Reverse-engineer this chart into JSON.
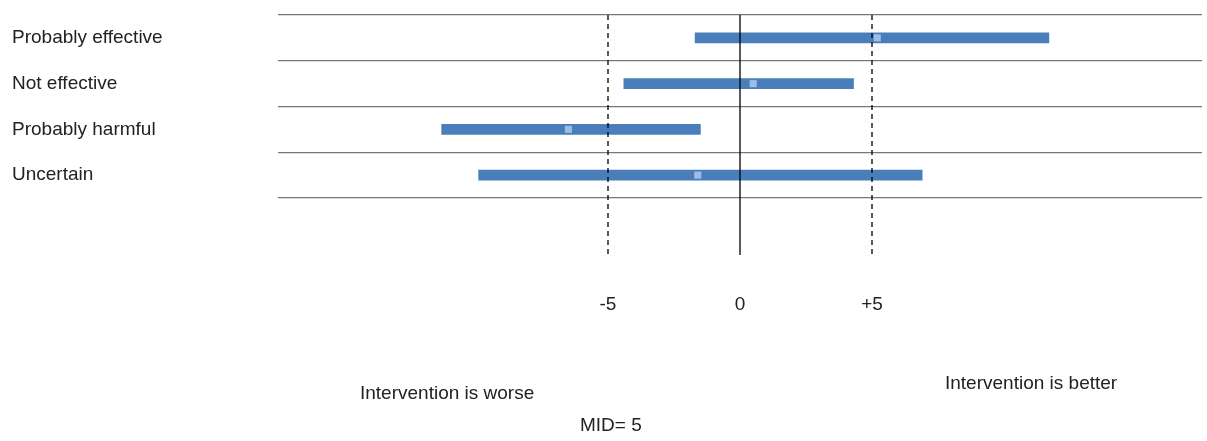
{
  "chart_data": {
    "type": "bar",
    "orientation": "horizontal",
    "categories": [
      "Probably effective",
      "Not effective",
      "Probably harmful",
      "Uncertain"
    ],
    "marker": "square",
    "series": [
      {
        "color": "#4a7ebb",
        "base": [
          -1.7,
          -4.4,
          -11.3,
          -9.9
        ],
        "values": [
          13.4,
          8.7,
          9.8,
          16.8
        ]
      },
      {
        "type": "scatter",
        "color": "#9dbde6",
        "values": [
          5.2,
          0.5,
          -6.5,
          -1.6
        ]
      }
    ],
    "xlim": [
      -17.5,
      17.5
    ],
    "xticks": [
      -5,
      0,
      {
        "value": 5,
        "label": "+5"
      }
    ],
    "grid": "y",
    "legend": false,
    "ref_lines": [
      {
        "axis": "x",
        "value": -5,
        "line_style": "dashed",
        "color": "#000000"
      },
      {
        "axis": "x",
        "value": 0,
        "line_style": "solid",
        "color": "#000000"
      },
      {
        "axis": "x",
        "value": 5,
        "line_style": "dashed",
        "color": "#000000"
      }
    ],
    "annotations": [
      "Intervention is worse",
      "MID= 5",
      "Intervention is better"
    ]
  }
}
